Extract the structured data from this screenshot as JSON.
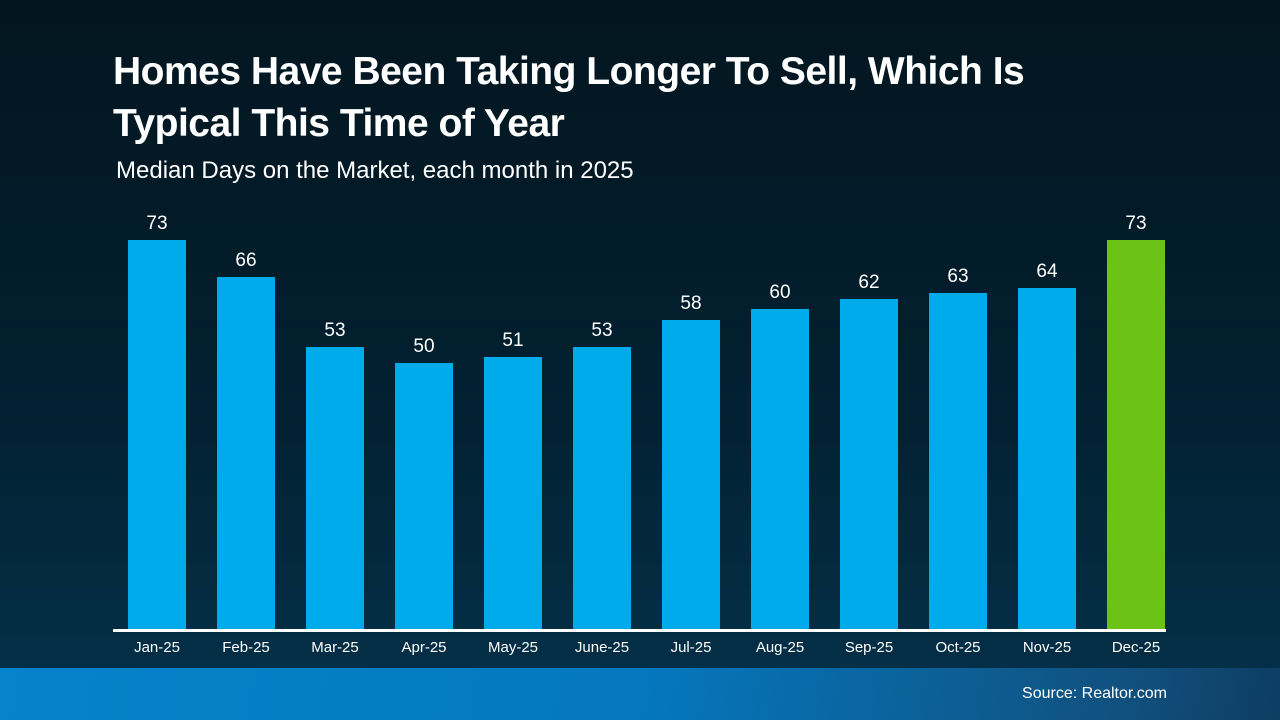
{
  "header": {
    "title_line1": "Homes Have Been Taking Longer To Sell, Which Is",
    "title_line2": "Typical This Time of Year",
    "subtitle": "Median Days on the Market, each month in 2025"
  },
  "footer": {
    "source": "Source: Realtor.com"
  },
  "chart_data": {
    "type": "bar",
    "title": "Homes Have Been Taking Longer To Sell, Which Is Typical This Time of Year",
    "subtitle": "Median Days on the Market, each month in 2025",
    "categories": [
      "Jan-25",
      "Feb-25",
      "Mar-25",
      "Apr-25",
      "May-25",
      "June-25",
      "Jul-25",
      "Aug-25",
      "Sep-25",
      "Oct-25",
      "Nov-25",
      "Dec-25"
    ],
    "values": [
      73,
      66,
      53,
      50,
      51,
      53,
      58,
      60,
      62,
      63,
      64,
      73
    ],
    "data_labels": true,
    "highlight_index": 11,
    "colors": {
      "default": "#00abeb",
      "highlight": "#6bc316",
      "axis": "#ffffff",
      "text": "#ffffff",
      "background_top": "#03161f",
      "background_bottom": "#05324c",
      "footer_left": "#0583cb",
      "footer_right": "#0e3d62"
    },
    "xlabel": "",
    "ylabel": "Median Days on the Market",
    "ylim": [
      0,
      73
    ],
    "grid": false,
    "legend": false
  }
}
